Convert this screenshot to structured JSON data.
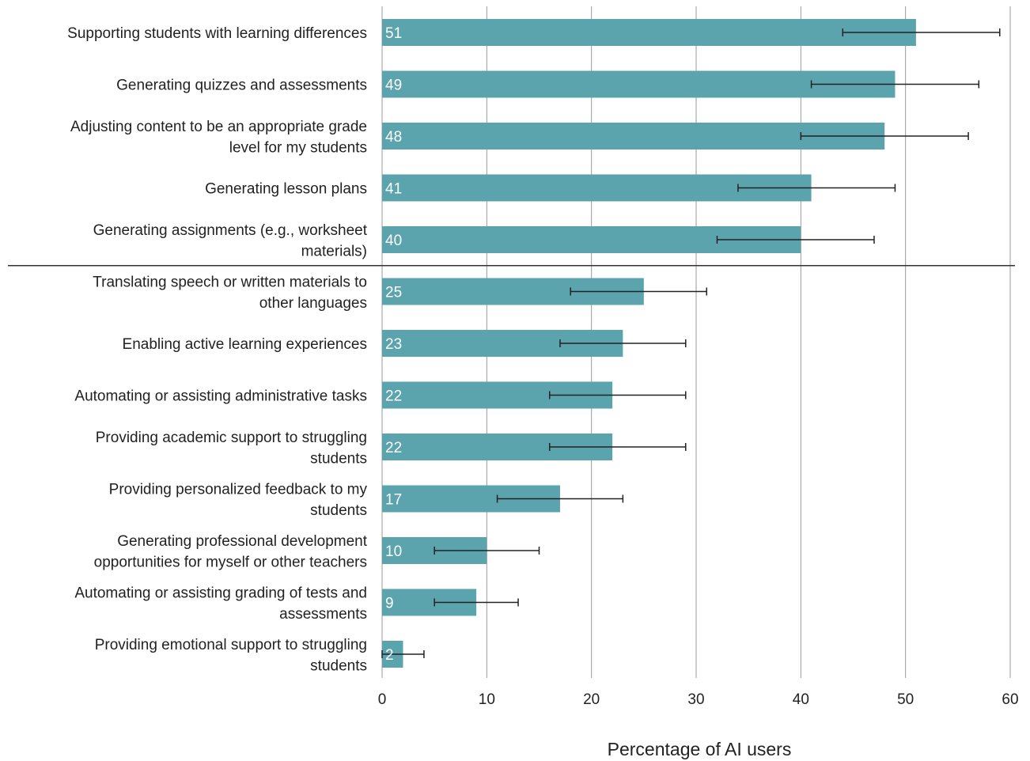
{
  "chart_data": {
    "type": "bar",
    "orientation": "horizontal",
    "categories": [
      "Supporting students with learning differences",
      "Generating quizzes and assessments",
      "Adjusting content to be an appropriate grade level for my students",
      "Generating lesson plans",
      "Generating assignments (e.g., worksheet materials)",
      "Translating speech or written materials to other languages",
      "Enabling active learning experiences",
      "Automating or assisting administrative tasks",
      "Providing academic support to struggling students",
      "Providing personalized feedback to my students",
      "Generating professional development opportunities for myself or other teachers",
      "Automating or assisting grading of tests and assessments",
      "Providing emotional support to struggling students"
    ],
    "category_lines": [
      [
        "Supporting students with learning differences"
      ],
      [
        "Generating quizzes and assessments"
      ],
      [
        "Adjusting content to be an appropriate grade",
        "level for my students"
      ],
      [
        "Generating lesson plans"
      ],
      [
        "Generating assignments (e.g., worksheet",
        "materials)"
      ],
      [
        "Translating speech or written materials to",
        "other languages"
      ],
      [
        "Enabling active learning experiences"
      ],
      [
        "Automating or assisting administrative tasks"
      ],
      [
        "Providing academic support to struggling",
        "students"
      ],
      [
        "Providing personalized feedback to my",
        "students"
      ],
      [
        "Generating professional development",
        "opportunities for myself or other teachers"
      ],
      [
        "Automating or assisting grading of tests and",
        "assessments"
      ],
      [
        "Providing emotional support to struggling",
        "students"
      ]
    ],
    "values": [
      51,
      49,
      48,
      41,
      40,
      25,
      23,
      22,
      22,
      17,
      10,
      9,
      2
    ],
    "error_low": [
      44,
      41,
      40,
      34,
      32,
      18,
      17,
      16,
      16,
      11,
      5,
      5,
      0
    ],
    "error_high": [
      59,
      57,
      56,
      49,
      47,
      31,
      29,
      29,
      29,
      23,
      15,
      13,
      4
    ],
    "data_labels": [
      "51",
      "49",
      "48",
      "41",
      "40",
      "25",
      "23",
      "22",
      "22",
      "17",
      "10",
      "9",
      "2"
    ],
    "xticks": [
      0,
      10,
      20,
      30,
      40,
      50,
      60
    ],
    "xlim": [
      0,
      60
    ],
    "xlabel": "Percentage of AI users",
    "ylabel": "",
    "title": "",
    "separator_after_index": 4,
    "grid": true,
    "bar_color": "#5ba4ae",
    "error_bar_color": "#222222",
    "grid_color": "#999999"
  }
}
